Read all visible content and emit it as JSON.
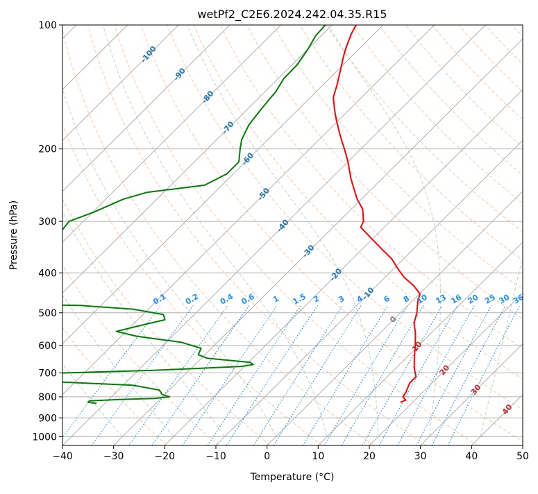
{
  "chart_data": {
    "type": "line",
    "subtype": "skew-T log-p diagram",
    "title": "wetPf2_C2E6.2024.242.04.35.R15",
    "xlabel": "Temperature (°C)",
    "ylabel": "Pressure (hPa)",
    "xlim": [
      -40,
      50
    ],
    "ylim": [
      1050,
      100
    ],
    "y_scale": "log",
    "skew_deg_per_decade": 81,
    "grid": true,
    "x_ticks": [
      -40,
      -30,
      -20,
      -10,
      0,
      10,
      20,
      30,
      40,
      50
    ],
    "y_ticks": [
      100,
      200,
      300,
      400,
      500,
      600,
      700,
      800,
      900,
      1000
    ],
    "series": [
      {
        "key": "temperature",
        "color": "#ff0000",
        "points": [
          [
            100,
            -65.3
          ],
          [
            105,
            -64.5
          ],
          [
            110,
            -63.5
          ],
          [
            115,
            -62.5
          ],
          [
            120,
            -61.4
          ],
          [
            130,
            -59.2
          ],
          [
            140,
            -57.2
          ],
          [
            150,
            -55.5
          ],
          [
            160,
            -53.0
          ],
          [
            170,
            -50.5
          ],
          [
            180,
            -48.0
          ],
          [
            190,
            -45.6
          ],
          [
            200,
            -43.2
          ],
          [
            210,
            -41.0
          ],
          [
            220,
            -39.0
          ],
          [
            235,
            -36.3
          ],
          [
            250,
            -33.5
          ],
          [
            265,
            -30.8
          ],
          [
            280,
            -27.8
          ],
          [
            300,
            -25.2
          ],
          [
            310,
            -24.6
          ],
          [
            330,
            -20.3
          ],
          [
            350,
            -16.2
          ],
          [
            370,
            -12.3
          ],
          [
            390,
            -9.3
          ],
          [
            410,
            -6.3
          ],
          [
            430,
            -2.7
          ],
          [
            450,
            0.1
          ],
          [
            470,
            1.2
          ],
          [
            500,
            3.2
          ],
          [
            530,
            4.7
          ],
          [
            560,
            6.9
          ],
          [
            600,
            9.3
          ],
          [
            640,
            11.4
          ],
          [
            680,
            13.5
          ],
          [
            715,
            15.6
          ],
          [
            740,
            15.6
          ],
          [
            780,
            16.7
          ],
          [
            800,
            17.0
          ],
          [
            815,
            18.2
          ],
          [
            825,
            17.6
          ]
        ]
      },
      {
        "key": "dewpoint",
        "color": "#008000",
        "points": [
          [
            100,
            -71.3
          ],
          [
            106,
            -71.1
          ],
          [
            115,
            -69.9
          ],
          [
            125,
            -69.0
          ],
          [
            135,
            -68.9
          ],
          [
            145,
            -67.9
          ],
          [
            160,
            -67.3
          ],
          [
            175,
            -66.6
          ],
          [
            190,
            -65.1
          ],
          [
            200,
            -63.6
          ],
          [
            215,
            -61.3
          ],
          [
            230,
            -61.3
          ],
          [
            245,
            -63.4
          ],
          [
            255,
            -73.3
          ],
          [
            265,
            -76.6
          ],
          [
            285,
            -79.8
          ],
          [
            300,
            -82.8
          ],
          [
            320,
            -82.3
          ],
          [
            340,
            -83.8
          ],
          [
            360,
            -81.7
          ],
          [
            380,
            -80.9
          ],
          [
            400,
            -80.6
          ],
          [
            412,
            -81.0
          ],
          [
            418,
            -79.0
          ],
          [
            425,
            -75.1
          ],
          [
            432,
            -82.0
          ],
          [
            445,
            -87.0
          ],
          [
            460,
            -88.0
          ],
          [
            472,
            -90.0
          ],
          [
            475,
            -80.0
          ],
          [
            480,
            -64.0
          ],
          [
            490,
            -53.0
          ],
          [
            505,
            -46.0
          ],
          [
            520,
            -44.7
          ],
          [
            540,
            -49.0
          ],
          [
            555,
            -51.9
          ],
          [
            570,
            -47.0
          ],
          [
            590,
            -37.0
          ],
          [
            610,
            -32.0
          ],
          [
            632,
            -31.3
          ],
          [
            645,
            -28.8
          ],
          [
            660,
            -19.6
          ],
          [
            668,
            -18.6
          ],
          [
            675,
            -20.5
          ],
          [
            690,
            -37.0
          ],
          [
            705,
            -62.0
          ],
          [
            713,
            -77.0
          ],
          [
            718,
            -80.0
          ],
          [
            730,
            -60.0
          ],
          [
            750,
            -38.0
          ],
          [
            770,
            -32.0
          ],
          [
            790,
            -30.5
          ],
          [
            800,
            -28.6
          ],
          [
            807,
            -31.2
          ],
          [
            812,
            -37.7
          ],
          [
            818,
            -43.5
          ],
          [
            825,
            -43.5
          ],
          [
            830,
            -41.6
          ]
        ]
      }
    ],
    "dry_adiabats": {
      "color": "#ffa07a",
      "theta_K": [
        250,
        260,
        270,
        280,
        290,
        300,
        310,
        320,
        330,
        340,
        350,
        360,
        370,
        380,
        390,
        400,
        410,
        420,
        430,
        440,
        450,
        460,
        470,
        480,
        490,
        500,
        510,
        520,
        530,
        540
      ]
    },
    "moist_adiabats": {
      "color": "#90c090",
      "start_temps_C": [
        -30,
        -20,
        -10,
        0,
        10,
        20,
        30,
        40
      ]
    },
    "mixing_ratio_lines": {
      "color": "#1e90ff",
      "values": [
        0.1,
        0.2,
        0.4,
        0.6,
        1,
        1.5,
        2,
        3,
        4,
        6,
        8,
        10,
        13,
        16,
        20,
        25,
        30,
        36
      ],
      "labels": [
        "0.1",
        "0.2",
        "0.4",
        "0.6",
        "1",
        "1.5",
        "2",
        "3",
        "4",
        "6",
        "8",
        "10",
        "13",
        "16",
        "20",
        "25",
        "30",
        "36"
      ],
      "label_pressure_hPa": 480
    },
    "isotherm_labels": [
      {
        "text": "-100",
        "color": "#1f77b4",
        "at": [
          -100,
          118
        ]
      },
      {
        "text": "-90",
        "color": "#1f77b4",
        "at": [
          -90,
          132
        ]
      },
      {
        "text": "-80",
        "color": "#1f77b4",
        "at": [
          -80,
          150
        ]
      },
      {
        "text": "-70",
        "color": "#1f77b4",
        "at": [
          -70,
          178
        ]
      },
      {
        "text": "-60",
        "color": "#1f77b4",
        "at": [
          -60,
          212
        ]
      },
      {
        "text": "-50",
        "color": "#1f77b4",
        "at": [
          -50,
          258
        ]
      },
      {
        "text": "-40",
        "color": "#1f77b4",
        "at": [
          -40,
          308
        ]
      },
      {
        "text": "-30",
        "color": "#1f77b4",
        "at": [
          -30,
          355
        ]
      },
      {
        "text": "-20",
        "color": "#1f77b4",
        "at": [
          -20,
          405
        ]
      },
      {
        "text": "-10",
        "color": "#1f77b4",
        "at": [
          -10,
          450
        ]
      },
      {
        "text": "0",
        "color": "#808080",
        "at": [
          0,
          520
        ]
      },
      {
        "text": "10",
        "color": "#d62728",
        "at": [
          10,
          605
        ]
      },
      {
        "text": "20",
        "color": "#d62728",
        "at": [
          20,
          690
        ]
      },
      {
        "text": "30",
        "color": "#d62728",
        "at": [
          30,
          770
        ]
      },
      {
        "text": "40",
        "color": "#d62728",
        "at": [
          40,
          860
        ]
      }
    ]
  }
}
